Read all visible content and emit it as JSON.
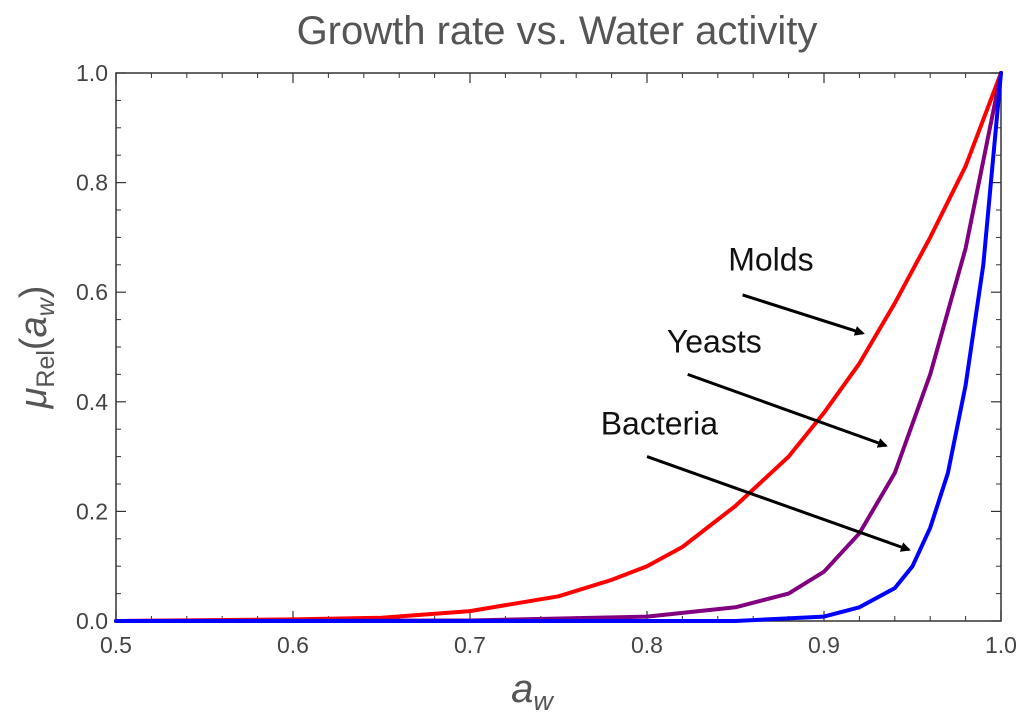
{
  "chart_data": {
    "type": "line",
    "title": "Growth rate vs. Water activity",
    "xlabel": {
      "main": "a",
      "sub": "w"
    },
    "ylabel": {
      "mu": "μ",
      "sub": "Rel",
      "open": "(",
      "a": "a",
      "a_sub": "w",
      "close": ")"
    },
    "xlim": [
      0.5,
      1.0
    ],
    "ylim": [
      0.0,
      1.0
    ],
    "xticks": [
      "0.5",
      "0.6",
      "0.7",
      "0.8",
      "0.9",
      "1.0"
    ],
    "yticks": [
      "0.0",
      "0.2",
      "0.4",
      "0.6",
      "0.8",
      "1.0"
    ],
    "grid": false,
    "series": [
      {
        "key": "molds",
        "color": "#ff0000",
        "x": [
          0.5,
          0.6,
          0.65,
          0.7,
          0.75,
          0.78,
          0.8,
          0.82,
          0.85,
          0.88,
          0.9,
          0.92,
          0.94,
          0.96,
          0.98,
          1.0
        ],
        "y": [
          0.0,
          0.003,
          0.006,
          0.018,
          0.045,
          0.075,
          0.1,
          0.135,
          0.21,
          0.3,
          0.38,
          0.47,
          0.58,
          0.7,
          0.83,
          1.0
        ]
      },
      {
        "key": "yeasts",
        "color": "#800080",
        "x": [
          0.5,
          0.7,
          0.8,
          0.85,
          0.88,
          0.9,
          0.92,
          0.94,
          0.96,
          0.98,
          1.0
        ],
        "y": [
          0.0,
          0.001,
          0.008,
          0.025,
          0.05,
          0.09,
          0.16,
          0.27,
          0.45,
          0.68,
          1.0
        ]
      },
      {
        "key": "bacteria",
        "color": "#0000ff",
        "x": [
          0.5,
          0.85,
          0.9,
          0.92,
          0.94,
          0.95,
          0.96,
          0.97,
          0.98,
          0.99,
          1.0
        ],
        "y": [
          0.0,
          0.0,
          0.008,
          0.025,
          0.06,
          0.1,
          0.17,
          0.27,
          0.43,
          0.65,
          1.0
        ]
      }
    ],
    "annotations": [
      {
        "key": "molds",
        "text": "Molds",
        "text_at": [
          0.87,
          0.64
        ],
        "arrow_from": [
          0.854,
          0.595
        ],
        "arrow_to": [
          0.922,
          0.525
        ]
      },
      {
        "key": "yeasts",
        "text": "Yeasts",
        "text_at": [
          0.838,
          0.49
        ],
        "arrow_from": [
          0.823,
          0.45
        ],
        "arrow_to": [
          0.935,
          0.32
        ]
      },
      {
        "key": "bacteria",
        "text": "Bacteria",
        "text_at": [
          0.807,
          0.34
        ],
        "arrow_from": [
          0.8,
          0.3
        ],
        "arrow_to": [
          0.948,
          0.13
        ]
      }
    ]
  }
}
